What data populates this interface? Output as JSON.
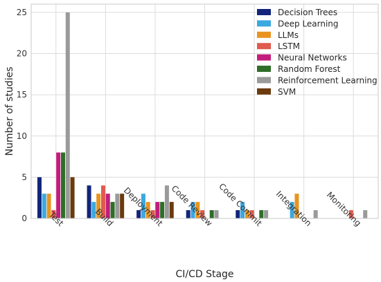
{
  "chart_data": {
    "type": "bar",
    "xlabel": "CI/CD Stage",
    "ylabel": "Number of studies",
    "categories": [
      "Test",
      "Build",
      "Deployment",
      "Code Review",
      "Code Commit",
      "Integration",
      "Monitoring"
    ],
    "ylim": [
      0,
      26
    ],
    "yticks": [
      0,
      5,
      10,
      15,
      20,
      25
    ],
    "grid": true,
    "legend_position": "top-right",
    "series": [
      {
        "name": "Decision Trees",
        "color": "#11257a",
        "values": [
          5,
          4,
          1,
          1,
          1,
          0,
          0
        ]
      },
      {
        "name": "Deep Learning",
        "color": "#3ba8e0",
        "values": [
          3,
          2,
          3,
          2,
          2,
          2,
          0
        ]
      },
      {
        "name": "LLMs",
        "color": "#e8941f",
        "values": [
          3,
          3,
          2,
          2,
          1,
          3,
          0
        ]
      },
      {
        "name": "LSTM",
        "color": "#e05a4e",
        "values": [
          1,
          4,
          1,
          1,
          1,
          0,
          1
        ]
      },
      {
        "name": "Neural Networks",
        "color": "#c21d7c",
        "values": [
          8,
          3,
          2,
          0,
          0,
          0,
          0
        ]
      },
      {
        "name": "Random Forest",
        "color": "#2e6e28",
        "values": [
          8,
          2,
          2,
          1,
          1,
          0,
          0
        ]
      },
      {
        "name": "Reinforcement Learning",
        "color": "#9a9a9a",
        "values": [
          25,
          3,
          4,
          1,
          1,
          1,
          1
        ]
      },
      {
        "name": "SVM",
        "color": "#6b3a0e",
        "values": [
          5,
          3,
          2,
          0,
          0,
          0,
          0
        ]
      }
    ]
  }
}
